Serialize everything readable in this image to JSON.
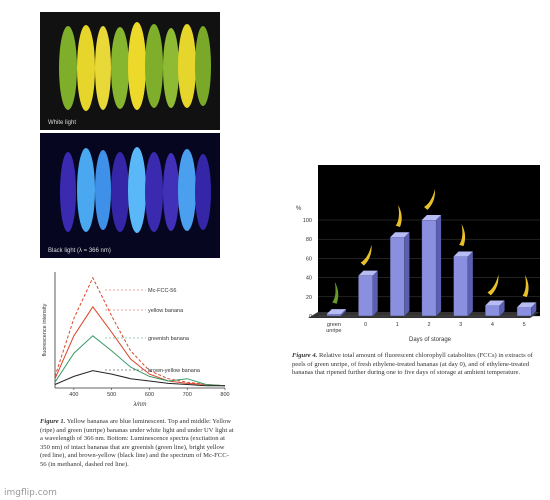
{
  "figure1": {
    "photo_top_label": "White light",
    "photo_bottom_label": "Black light (λ = 366 nm)",
    "spectrum": {
      "type": "line",
      "y_label": "fluorescence intensity",
      "x_label": "λ/nm",
      "x": [
        350,
        400,
        450,
        500,
        550,
        600,
        650,
        700,
        750,
        800
      ],
      "xlim": [
        350,
        800
      ],
      "xticks": [
        400,
        500,
        600,
        700,
        800
      ],
      "ylim": [
        0,
        100
      ],
      "series": [
        {
          "name": "Mc-FCC-56",
          "color": "#d9472b",
          "dashed": true,
          "values": [
            10,
            60,
            95,
            62,
            32,
            15,
            8,
            5,
            3,
            2
          ]
        },
        {
          "name": "yellow banana",
          "color": "#d9472b",
          "values": [
            8,
            45,
            70,
            48,
            25,
            12,
            6,
            4,
            3,
            2
          ]
        },
        {
          "name": "greenish banana",
          "color": "#3a9a6a",
          "values": [
            5,
            30,
            45,
            32,
            18,
            10,
            6,
            8,
            3,
            2
          ]
        },
        {
          "name": "brown-yellow banana",
          "color": "#222222",
          "values": [
            3,
            10,
            15,
            12,
            8,
            6,
            4,
            3,
            2,
            2
          ]
        }
      ]
    },
    "caption_label": "Figure 1.",
    "caption": "Yellow bananas are blue luminescent. Top and middle: Yellow (ripe) and green (unripe) bananas under white light and under UV light at a wavelength of 366 nm. Bottom: Luminescence spectra (excitation at 350 nm) of intact bananas that are greenish (green line), bright yellow (red line), and brown-yellow (black line) and the spectrum of Mc-FCC-56 (in methanol, dashed red line)."
  },
  "figure4": {
    "chart": {
      "type": "bar",
      "y_label": "%",
      "x_label": "Days of storage",
      "categories": [
        "green unripe",
        "0",
        "1",
        "2",
        "3",
        "4",
        "5"
      ],
      "values": [
        2,
        42,
        82,
        100,
        62,
        11,
        9
      ],
      "color": "#8a8fe0",
      "ylim": [
        0,
        100
      ],
      "yticks": [
        0,
        20,
        40,
        60,
        80,
        100
      ],
      "grid": true
    },
    "caption_label": "Figure 4.",
    "caption": "Relative total amount of fluorescent chlorophyll catabolites (FCCs) in extracts of peels of green unripe, of fresh ethylene-treated bananas (at day 0), and of ethylene-treated bananas that ripened further during one to five days of storage at ambient temperature."
  },
  "watermark": "imgflip.com"
}
